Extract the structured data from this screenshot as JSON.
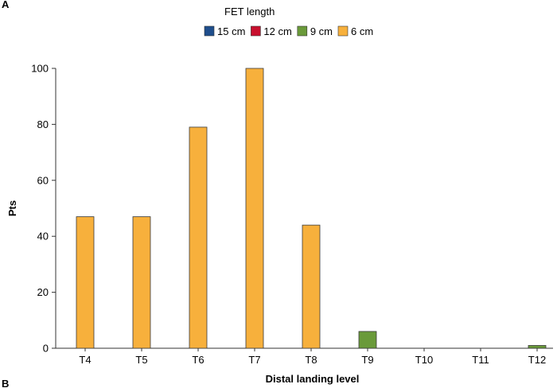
{
  "panel_label": "A",
  "next_panel_label": "B",
  "legend": {
    "title": "FET length",
    "items": [
      {
        "label": "15 cm",
        "color": "#1f4e8c"
      },
      {
        "label": "12 cm",
        "color": "#c8102e"
      },
      {
        "label": "9 cm",
        "color": "#6a9a3a"
      },
      {
        "label": "6 cm",
        "color": "#f7b03c"
      }
    ]
  },
  "chart_data": {
    "type": "bar",
    "title": "",
    "xlabel": "Distal landing level",
    "ylabel": "Pts",
    "categories": [
      "T4",
      "T5",
      "T6",
      "T7",
      "T8",
      "T9",
      "T10",
      "T11",
      "T12"
    ],
    "series": [
      {
        "name": "15 cm",
        "color": "#1f4e8c",
        "values": [
          0,
          0,
          0,
          0,
          0,
          0,
          0,
          0,
          0
        ]
      },
      {
        "name": "12 cm",
        "color": "#c8102e",
        "values": [
          0,
          0,
          0,
          0,
          0,
          0,
          0,
          0,
          0
        ]
      },
      {
        "name": "9 cm",
        "color": "#6a9a3a",
        "values": [
          0,
          0,
          0,
          0,
          0,
          6,
          0,
          0,
          1
        ]
      },
      {
        "name": "6 cm",
        "color": "#f7b03c",
        "values": [
          47,
          47,
          79,
          100,
          44,
          0,
          0,
          0,
          0
        ]
      }
    ],
    "ylim": [
      0,
      100
    ],
    "yticks": [
      0,
      20,
      40,
      60,
      80,
      100
    ],
    "grid": false,
    "legend_position": "top"
  }
}
